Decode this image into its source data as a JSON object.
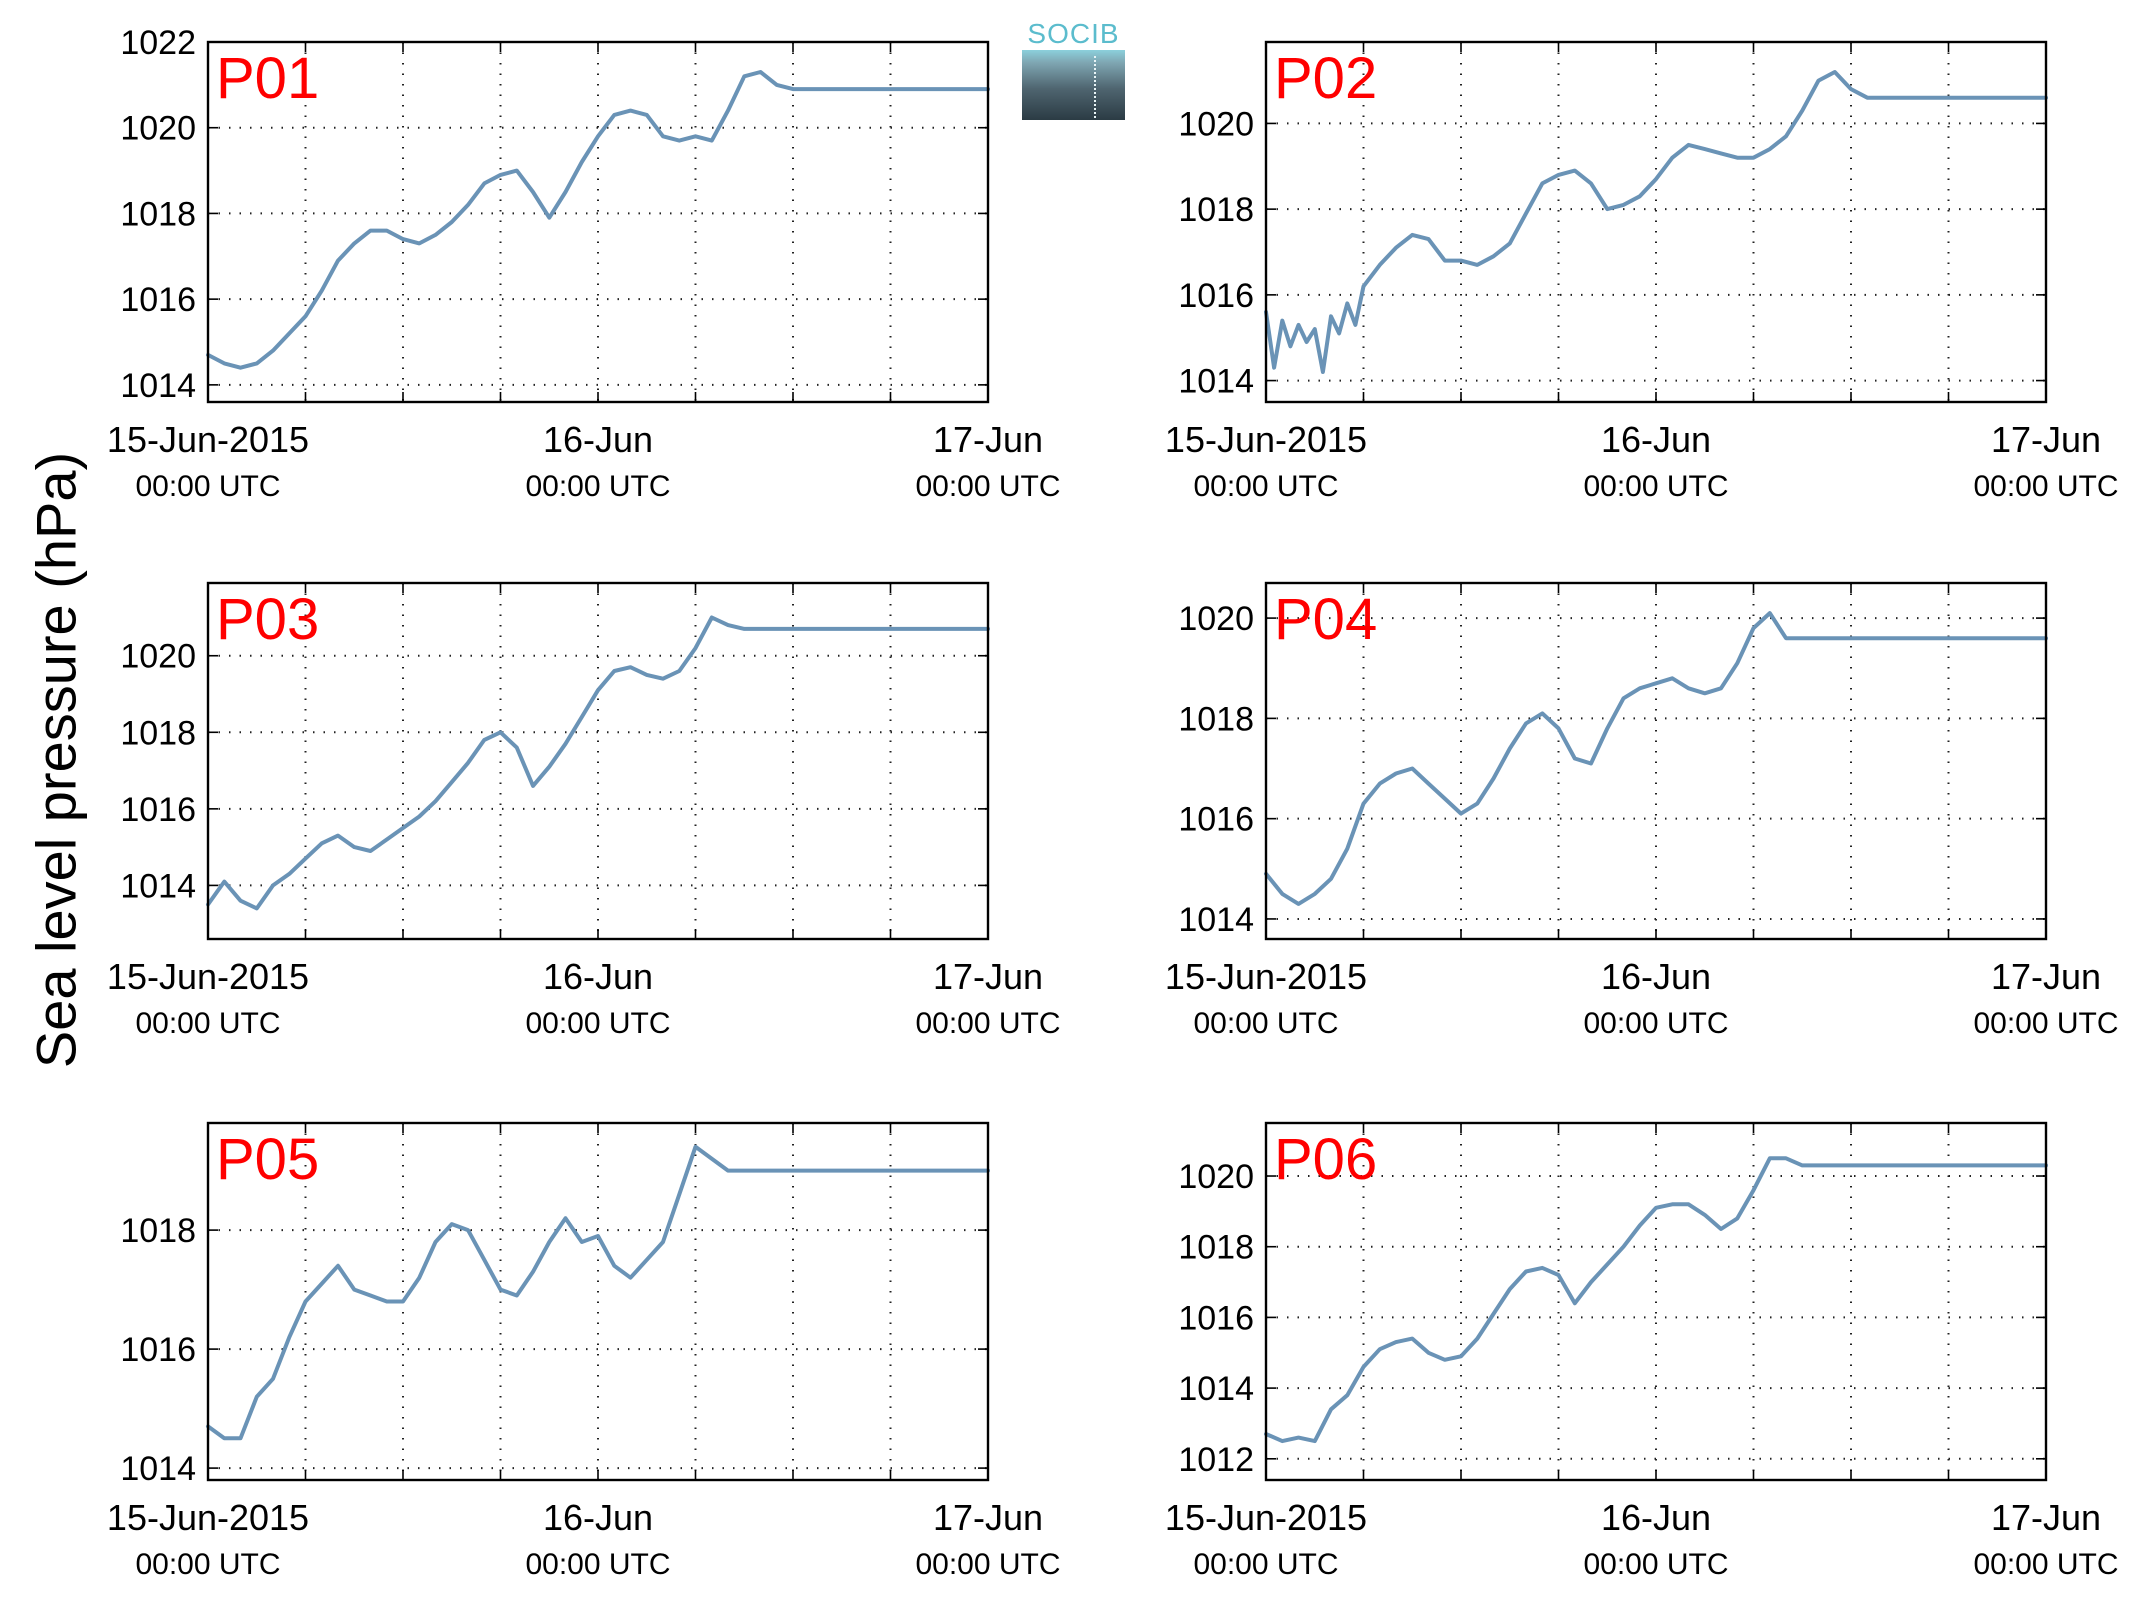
{
  "figure": {
    "ylabel": "Sea level pressure (hPa)",
    "logo_text": "SOCIB"
  },
  "chart_data": [
    {
      "type": "line",
      "label": "P01",
      "x_ticks": [
        {
          "line1": "15-Jun-2015",
          "line2": "00:00 UTC"
        },
        {
          "line1": "16-Jun",
          "line2": "00:00 UTC"
        },
        {
          "line1": "17-Jun",
          "line2": "00:00 UTC"
        }
      ],
      "xlim_hours": [
        0,
        48
      ],
      "ylim": [
        1013.6,
        1022.0
      ],
      "yticks": [
        1014,
        1016,
        1018,
        1020,
        1022
      ],
      "grid": true,
      "series": [
        {
          "color": "#6a93b6",
          "x": [
            0,
            1,
            2,
            3,
            4,
            5,
            6,
            7,
            8,
            9,
            10,
            11,
            12,
            13,
            14,
            15,
            16,
            17,
            18,
            19,
            20,
            21,
            22,
            23,
            24,
            25,
            26,
            27,
            28,
            29,
            30,
            31,
            32,
            33,
            34,
            35,
            36,
            37,
            38,
            39,
            40,
            41,
            42,
            43,
            44,
            45,
            46,
            47,
            48
          ],
          "y": [
            1014.7,
            1014.5,
            1014.4,
            1014.5,
            1014.8,
            1015.2,
            1015.6,
            1016.2,
            1016.9,
            1017.3,
            1017.6,
            1017.6,
            1017.4,
            1017.3,
            1017.5,
            1017.8,
            1018.2,
            1018.7,
            1018.9,
            1019.0,
            1018.5,
            1017.9,
            1018.5,
            1019.2,
            1019.8,
            1020.3,
            1020.4,
            1020.3,
            1019.8,
            1019.7,
            1019.8,
            1019.7,
            1020.4,
            1021.2,
            1021.3,
            1021.0,
            1020.9,
            1020.9,
            1020.9,
            1020.9,
            1020.9,
            1020.9,
            1020.9,
            1020.9,
            1020.9,
            1020.9,
            1020.9,
            1020.9,
            1020.9
          ]
        }
      ]
    },
    {
      "type": "line",
      "label": "P02",
      "x_ticks": [
        {
          "line1": "15-Jun-2015",
          "line2": "00:00 UTC"
        },
        {
          "line1": "16-Jun",
          "line2": "00:00 UTC"
        },
        {
          "line1": "17-Jun",
          "line2": "00:00 UTC"
        }
      ],
      "xlim_hours": [
        0,
        48
      ],
      "ylim": [
        1013.5,
        1021.9
      ],
      "yticks": [
        1014,
        1016,
        1018,
        1020
      ],
      "grid": true,
      "series": [
        {
          "color": "#6a93b6",
          "x": [
            0,
            0.5,
            1,
            1.5,
            2,
            2.5,
            3,
            3.5,
            4,
            4.5,
            5,
            5.5,
            6,
            7,
            8,
            9,
            10,
            11,
            12,
            13,
            14,
            15,
            16,
            17,
            18,
            19,
            20,
            21,
            22,
            23,
            24,
            25,
            26,
            27,
            28,
            29,
            30,
            31,
            32,
            33,
            34,
            35,
            36,
            37,
            38,
            39,
            40,
            41,
            42,
            43,
            44,
            45,
            46,
            47,
            48
          ],
          "y": [
            1015.6,
            1014.3,
            1015.4,
            1014.8,
            1015.3,
            1014.9,
            1015.2,
            1014.2,
            1015.5,
            1015.1,
            1015.8,
            1015.3,
            1016.2,
            1016.7,
            1017.1,
            1017.4,
            1017.3,
            1016.8,
            1016.8,
            1016.7,
            1016.9,
            1017.2,
            1017.9,
            1018.6,
            1018.8,
            1018.9,
            1018.6,
            1018.0,
            1018.1,
            1018.3,
            1018.7,
            1019.2,
            1019.5,
            1019.4,
            1019.3,
            1019.2,
            1019.2,
            1019.4,
            1019.7,
            1020.3,
            1021.0,
            1021.2,
            1020.8,
            1020.6,
            1020.6,
            1020.6,
            1020.6,
            1020.6,
            1020.6,
            1020.6,
            1020.6,
            1020.6,
            1020.6,
            1020.6,
            1020.6
          ]
        }
      ]
    },
    {
      "type": "line",
      "label": "P03",
      "x_ticks": [
        {
          "line1": "15-Jun-2015",
          "line2": "00:00 UTC"
        },
        {
          "line1": "16-Jun",
          "line2": "00:00 UTC"
        },
        {
          "line1": "17-Jun",
          "line2": "00:00 UTC"
        }
      ],
      "xlim_hours": [
        0,
        48
      ],
      "ylim": [
        1012.6,
        1021.9
      ],
      "yticks": [
        1014,
        1016,
        1018,
        1020
      ],
      "grid": true,
      "series": [
        {
          "color": "#6a93b6",
          "x": [
            0,
            1,
            2,
            3,
            4,
            5,
            6,
            7,
            8,
            9,
            10,
            11,
            12,
            13,
            14,
            15,
            16,
            17,
            18,
            19,
            20,
            21,
            22,
            23,
            24,
            25,
            26,
            27,
            28,
            29,
            30,
            31,
            32,
            33,
            34,
            35,
            36,
            37,
            38,
            39,
            40,
            41,
            42,
            43,
            44,
            45,
            46,
            47,
            48
          ],
          "y": [
            1013.5,
            1014.1,
            1013.6,
            1013.4,
            1014.0,
            1014.3,
            1014.7,
            1015.1,
            1015.3,
            1015.0,
            1014.9,
            1015.2,
            1015.5,
            1015.8,
            1016.2,
            1016.7,
            1017.2,
            1017.8,
            1018.0,
            1017.6,
            1016.6,
            1017.1,
            1017.7,
            1018.4,
            1019.1,
            1019.6,
            1019.7,
            1019.5,
            1019.4,
            1019.6,
            1020.2,
            1021.0,
            1020.8,
            1020.7,
            1020.7,
            1020.7,
            1020.7,
            1020.7,
            1020.7,
            1020.7,
            1020.7,
            1020.7,
            1020.7,
            1020.7,
            1020.7,
            1020.7,
            1020.7,
            1020.7,
            1020.7
          ]
        }
      ]
    },
    {
      "type": "line",
      "label": "P04",
      "x_ticks": [
        {
          "line1": "15-Jun-2015",
          "line2": "00:00 UTC"
        },
        {
          "line1": "16-Jun",
          "line2": "00:00 UTC"
        },
        {
          "line1": "17-Jun",
          "line2": "00:00 UTC"
        }
      ],
      "xlim_hours": [
        0,
        48
      ],
      "ylim": [
        1013.6,
        1020.7
      ],
      "yticks": [
        1014,
        1016,
        1018,
        1020
      ],
      "grid": true,
      "series": [
        {
          "color": "#6a93b6",
          "x": [
            0,
            1,
            2,
            3,
            4,
            5,
            6,
            7,
            8,
            9,
            10,
            11,
            12,
            13,
            14,
            15,
            16,
            17,
            18,
            19,
            20,
            21,
            22,
            23,
            24,
            25,
            26,
            27,
            28,
            29,
            30,
            31,
            32,
            33,
            34,
            35,
            36,
            37,
            38,
            39,
            40,
            41,
            42,
            43,
            44,
            45,
            46,
            47,
            48
          ],
          "y": [
            1014.9,
            1014.5,
            1014.3,
            1014.5,
            1014.8,
            1015.4,
            1016.3,
            1016.7,
            1016.9,
            1017.0,
            1016.7,
            1016.4,
            1016.1,
            1016.3,
            1016.8,
            1017.4,
            1017.9,
            1018.1,
            1017.8,
            1017.2,
            1017.1,
            1017.8,
            1018.4,
            1018.6,
            1018.7,
            1018.8,
            1018.6,
            1018.5,
            1018.6,
            1019.1,
            1019.8,
            1020.1,
            1019.6,
            1019.6,
            1019.6,
            1019.6,
            1019.6,
            1019.6,
            1019.6,
            1019.6,
            1019.6,
            1019.6,
            1019.6,
            1019.6,
            1019.6,
            1019.6,
            1019.6,
            1019.6,
            1019.6
          ]
        }
      ]
    },
    {
      "type": "line",
      "label": "P05",
      "x_ticks": [
        {
          "line1": "15-Jun-2015",
          "line2": "00:00 UTC"
        },
        {
          "line1": "16-Jun",
          "line2": "00:00 UTC"
        },
        {
          "line1": "17-Jun",
          "line2": "00:00 UTC"
        }
      ],
      "xlim_hours": [
        0,
        48
      ],
      "ylim": [
        1013.8,
        1019.8
      ],
      "yticks": [
        1014,
        1016,
        1018
      ],
      "grid": true,
      "series": [
        {
          "color": "#6a93b6",
          "x": [
            0,
            1,
            2,
            3,
            4,
            5,
            6,
            7,
            8,
            9,
            10,
            11,
            12,
            13,
            14,
            15,
            16,
            17,
            18,
            19,
            20,
            21,
            22,
            23,
            24,
            25,
            26,
            27,
            28,
            29,
            30,
            31,
            32,
            33,
            34,
            35,
            36,
            37,
            38,
            39,
            40,
            41,
            42,
            43,
            44,
            45,
            46,
            47,
            48
          ],
          "y": [
            1014.7,
            1014.5,
            1014.5,
            1015.2,
            1015.5,
            1016.2,
            1016.8,
            1017.1,
            1017.4,
            1017.0,
            1016.9,
            1016.8,
            1016.8,
            1017.2,
            1017.8,
            1018.1,
            1018.0,
            1017.5,
            1017.0,
            1016.9,
            1017.3,
            1017.8,
            1018.2,
            1017.8,
            1017.9,
            1017.4,
            1017.2,
            1017.5,
            1017.8,
            1018.6,
            1019.4,
            1019.2,
            1019.0,
            1019.0,
            1019.0,
            1019.0,
            1019.0,
            1019.0,
            1019.0,
            1019.0,
            1019.0,
            1019.0,
            1019.0,
            1019.0,
            1019.0,
            1019.0,
            1019.0,
            1019.0,
            1019.0
          ]
        }
      ]
    },
    {
      "type": "line",
      "label": "P06",
      "x_ticks": [
        {
          "line1": "15-Jun-2015",
          "line2": "00:00 UTC"
        },
        {
          "line1": "16-Jun",
          "line2": "00:00 UTC"
        },
        {
          "line1": "17-Jun",
          "line2": "00:00 UTC"
        }
      ],
      "xlim_hours": [
        0,
        48
      ],
      "ylim": [
        1011.4,
        1021.5
      ],
      "yticks": [
        1012,
        1014,
        1016,
        1018,
        1020
      ],
      "grid": true,
      "series": [
        {
          "color": "#6a93b6",
          "x": [
            0,
            1,
            2,
            3,
            4,
            5,
            6,
            7,
            8,
            9,
            10,
            11,
            12,
            13,
            14,
            15,
            16,
            17,
            18,
            19,
            20,
            21,
            22,
            23,
            24,
            25,
            26,
            27,
            28,
            29,
            30,
            31,
            32,
            33,
            34,
            35,
            36,
            37,
            38,
            39,
            40,
            41,
            42,
            43,
            44,
            45,
            46,
            47,
            48
          ],
          "y": [
            1012.7,
            1012.5,
            1012.6,
            1012.5,
            1013.4,
            1013.8,
            1014.6,
            1015.1,
            1015.3,
            1015.4,
            1015.0,
            1014.8,
            1014.9,
            1015.4,
            1016.1,
            1016.8,
            1017.3,
            1017.4,
            1017.2,
            1016.4,
            1017.0,
            1017.5,
            1018.0,
            1018.6,
            1019.1,
            1019.2,
            1019.2,
            1018.9,
            1018.5,
            1018.8,
            1019.6,
            1020.5,
            1020.5,
            1020.3,
            1020.3,
            1020.3,
            1020.3,
            1020.3,
            1020.3,
            1020.3,
            1020.3,
            1020.3,
            1020.3,
            1020.3,
            1020.3,
            1020.3,
            1020.3,
            1020.3,
            1020.3
          ]
        }
      ]
    }
  ]
}
